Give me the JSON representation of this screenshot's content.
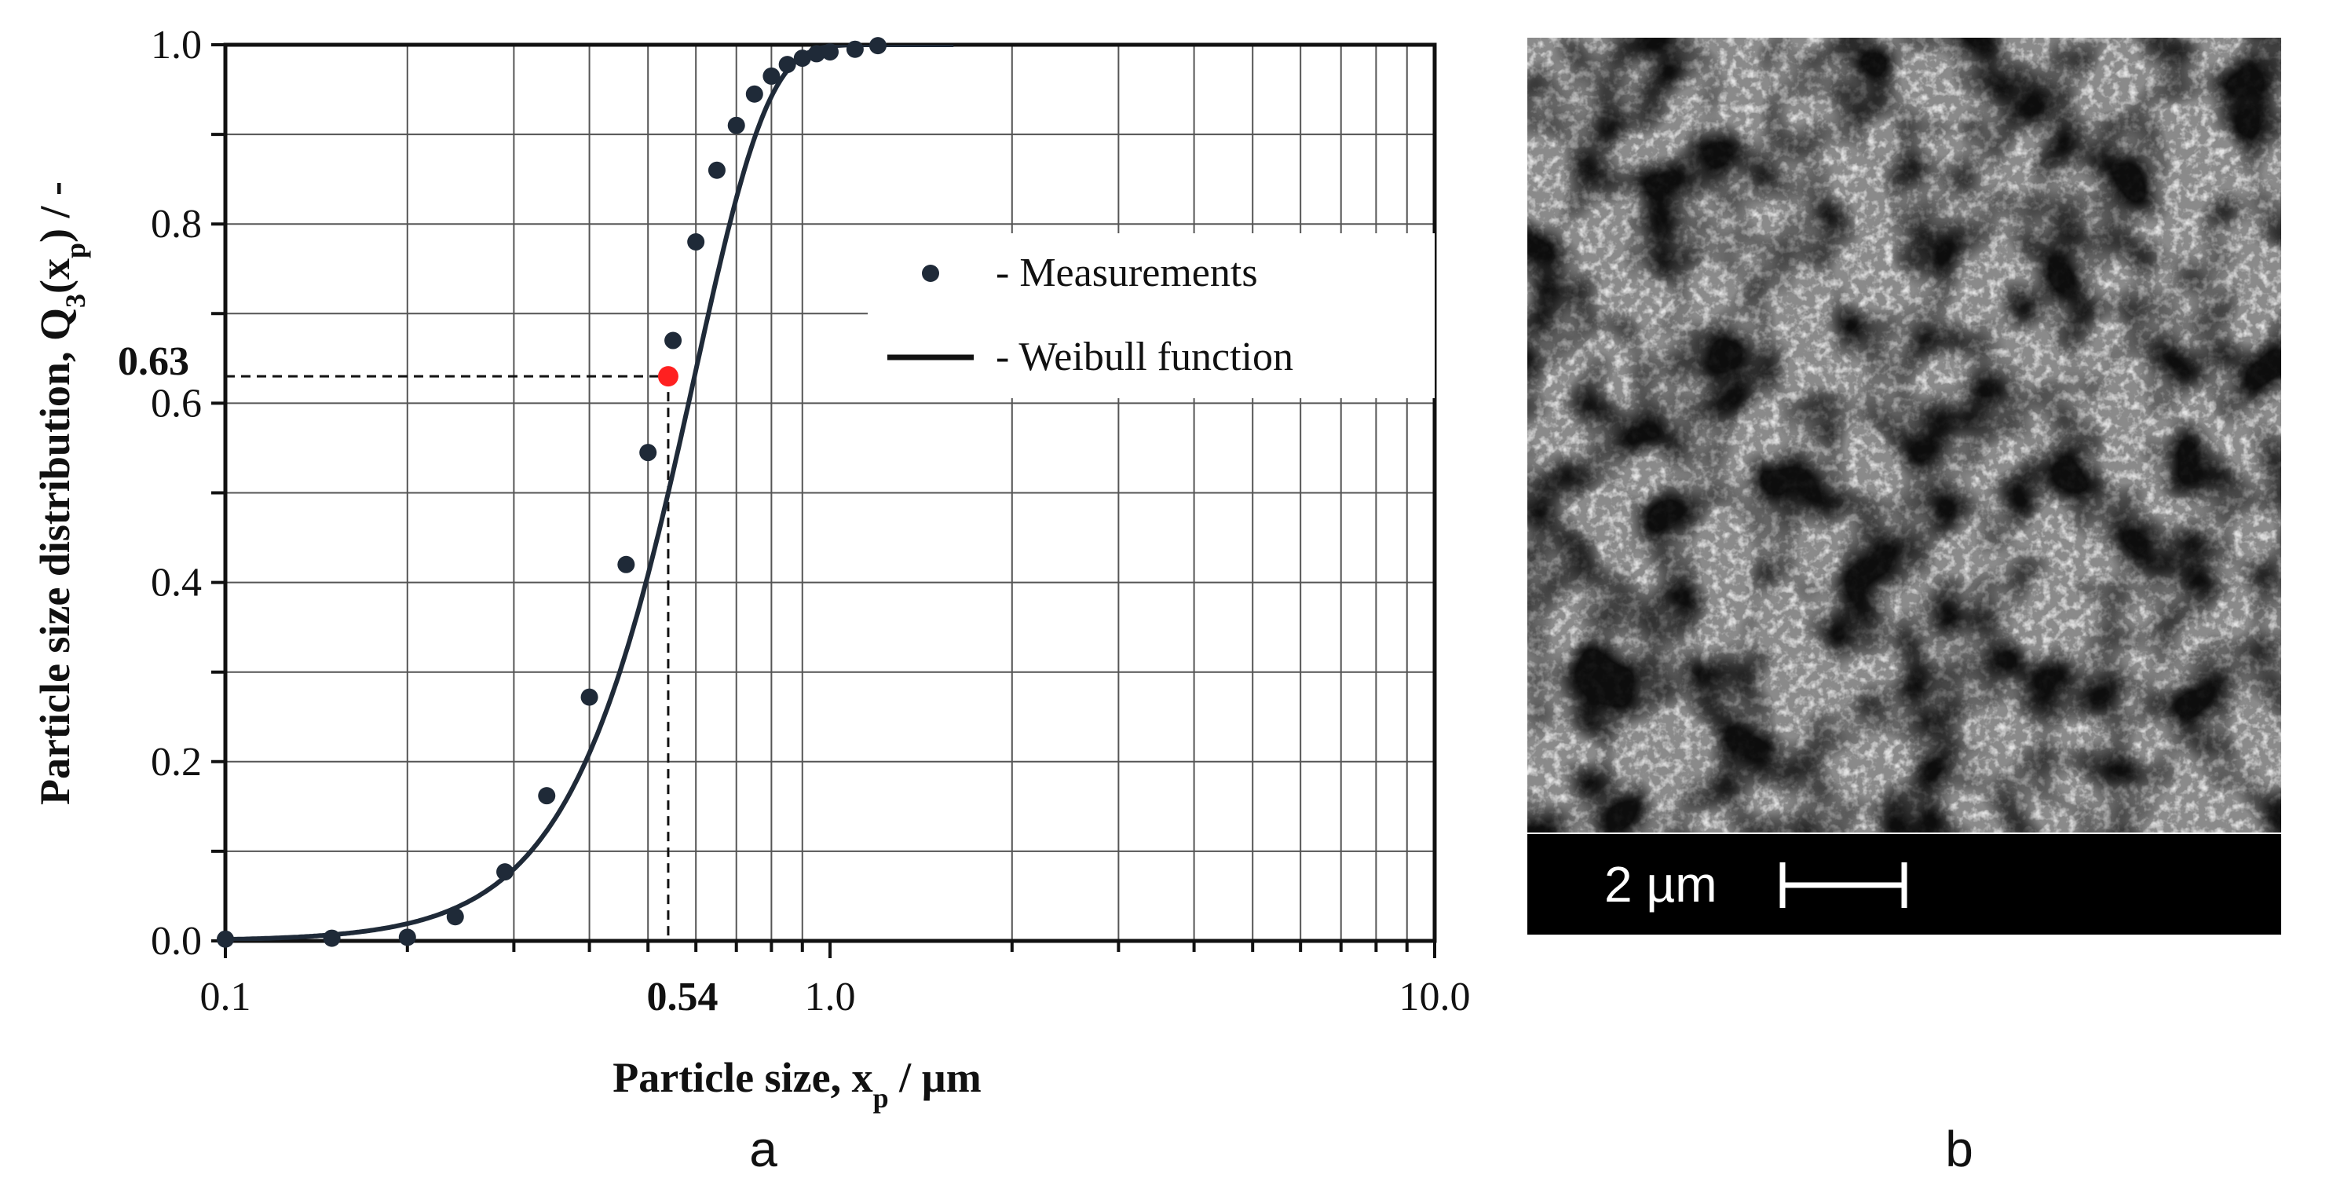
{
  "chart_data": {
    "type": "scatter",
    "xscale": "log",
    "xlim": [
      0.1,
      10.0
    ],
    "ylim": [
      0.0,
      1.0
    ],
    "grid": true,
    "xlabel": "Particle size, x",
    "xlabel_sub": "p",
    "xlabel_unit": " / µm",
    "ylabel_pre": "Particle size distribution,  Q",
    "ylabel_sub1": "3",
    "ylabel_mid": "(x",
    "ylabel_sub2": "p",
    "ylabel_post": ") / -",
    "x_ticks": [
      0.1,
      1.0,
      10.0
    ],
    "x_tick_labels": [
      "0.1",
      "1.0",
      "10.0"
    ],
    "y_ticks": [
      0.0,
      0.2,
      0.4,
      0.6,
      0.8,
      1.0
    ],
    "y_tick_labels": [
      "0.0",
      "0.2",
      "0.4",
      "0.6",
      "0.8",
      "1.0"
    ],
    "legend_placement": "upper-right",
    "series": [
      {
        "name": "- Measurements",
        "kind": "points",
        "color": "#1f2a38",
        "x": [
          0.1,
          0.15,
          0.2,
          0.24,
          0.29,
          0.34,
          0.4,
          0.46,
          0.5,
          0.55,
          0.6,
          0.65,
          0.7,
          0.75,
          0.8,
          0.85,
          0.9,
          0.95,
          1.0,
          1.1,
          1.2
        ],
        "y": [
          0.002,
          0.003,
          0.004,
          0.027,
          0.077,
          0.162,
          0.272,
          0.42,
          0.545,
          0.67,
          0.78,
          0.86,
          0.91,
          0.945,
          0.965,
          0.978,
          0.985,
          0.99,
          0.992,
          0.995,
          0.999
        ]
      },
      {
        "name": "- Weibull function",
        "kind": "line",
        "color": "#1f2a38",
        "model": "weibull",
        "x50": 0.54,
        "shape": 3.6
      }
    ],
    "highlight": {
      "x": 0.54,
      "y": 0.63,
      "color": "#ff2020"
    },
    "annotations": {
      "x_value_label": "0.54",
      "y_value_label": "0.63"
    },
    "panel_label": "a"
  },
  "micrograph": {
    "scale_text": "2 µm",
    "panel_label": "b"
  }
}
